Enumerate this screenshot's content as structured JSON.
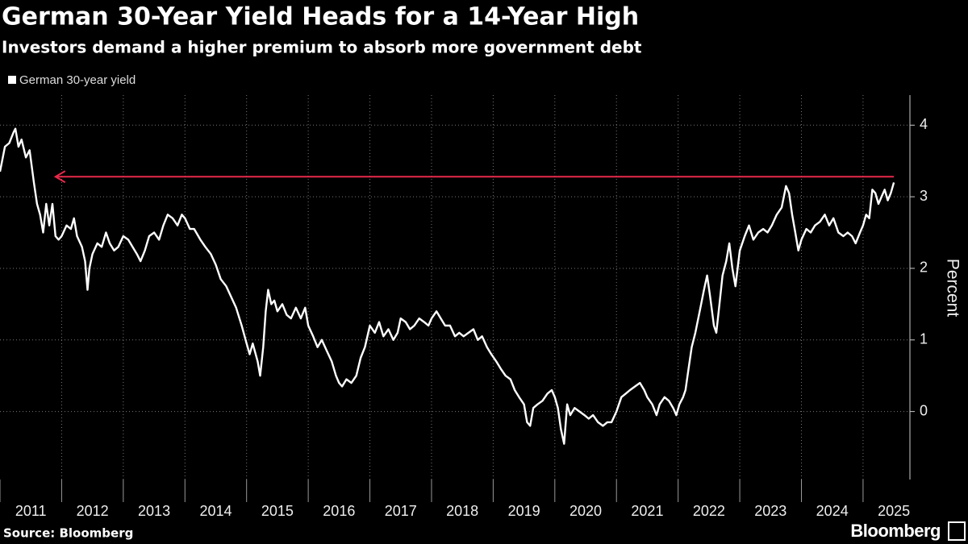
{
  "chart_data": {
    "type": "line",
    "title": "German 30-Year Yield Heads for a 14-Year High",
    "subtitle": "Investors demand a higher premium to absorb more government debt",
    "y_axis_label": "Percent",
    "source": "Source: Bloomberg",
    "logo": "Bloomberg",
    "grid": true,
    "xlim": [
      2011,
      2025.76
    ],
    "ylim": [
      -0.95,
      4.42
    ],
    "xticks": [
      2011,
      2012,
      2013,
      2014,
      2015,
      2016,
      2017,
      2018,
      2019,
      2020,
      2021,
      2022,
      2023,
      2024,
      2025
    ],
    "yticks": [
      0,
      1,
      2,
      3,
      4
    ],
    "arrow": {
      "value": 3.28,
      "from": 2025.5,
      "to": 2011.9,
      "color": "#e8294a"
    },
    "x": [
      2011.0,
      2011.08,
      2011.15,
      2011.22,
      2011.25,
      2011.3,
      2011.35,
      2011.42,
      2011.48,
      2011.55,
      2011.6,
      2011.65,
      2011.7,
      2011.75,
      2011.8,
      2011.85,
      2011.9,
      2011.95,
      2012.0,
      2012.08,
      2012.15,
      2012.2,
      2012.25,
      2012.33,
      2012.38,
      2012.42,
      2012.45,
      2012.5,
      2012.58,
      2012.65,
      2012.72,
      2012.78,
      2012.85,
      2012.92,
      2013.0,
      2013.08,
      2013.15,
      2013.22,
      2013.28,
      2013.35,
      2013.42,
      2013.5,
      2013.58,
      2013.65,
      2013.72,
      2013.8,
      2013.88,
      2013.95,
      2014.0,
      2014.08,
      2014.15,
      2014.25,
      2014.33,
      2014.42,
      2014.5,
      2014.58,
      2014.67,
      2014.75,
      2014.83,
      2014.92,
      2015.0,
      2015.05,
      2015.1,
      2015.18,
      2015.22,
      2015.27,
      2015.31,
      2015.35,
      2015.4,
      2015.45,
      2015.5,
      2015.58,
      2015.65,
      2015.72,
      2015.8,
      2015.88,
      2015.95,
      2016.0,
      2016.08,
      2016.15,
      2016.22,
      2016.3,
      2016.38,
      2016.45,
      2016.5,
      2016.55,
      2016.62,
      2016.7,
      2016.78,
      2016.85,
      2016.92,
      2017.0,
      2017.08,
      2017.15,
      2017.22,
      2017.3,
      2017.38,
      2017.45,
      2017.5,
      2017.58,
      2017.65,
      2017.72,
      2017.8,
      2017.88,
      2017.95,
      2018.0,
      2018.08,
      2018.15,
      2018.22,
      2018.3,
      2018.38,
      2018.45,
      2018.52,
      2018.6,
      2018.68,
      2018.75,
      2018.82,
      2018.9,
      2018.97,
      2019.05,
      2019.12,
      2019.2,
      2019.28,
      2019.35,
      2019.42,
      2019.5,
      2019.55,
      2019.6,
      2019.65,
      2019.72,
      2019.8,
      2019.88,
      2019.95,
      2020.0,
      2020.05,
      2020.1,
      2020.15,
      2020.2,
      2020.25,
      2020.32,
      2020.4,
      2020.48,
      2020.55,
      2020.62,
      2020.7,
      2020.78,
      2020.85,
      2020.92,
      2021.0,
      2021.08,
      2021.15,
      2021.22,
      2021.3,
      2021.38,
      2021.45,
      2021.5,
      2021.58,
      2021.65,
      2021.7,
      2021.78,
      2021.85,
      2021.92,
      2021.97,
      2022.02,
      2022.08,
      2022.12,
      2022.17,
      2022.22,
      2022.28,
      2022.35,
      2022.42,
      2022.47,
      2022.52,
      2022.58,
      2022.62,
      2022.67,
      2022.72,
      2022.78,
      2022.83,
      2022.88,
      2022.93,
      2023.0,
      2023.08,
      2023.15,
      2023.22,
      2023.3,
      2023.38,
      2023.45,
      2023.52,
      2023.6,
      2023.68,
      2023.75,
      2023.8,
      2023.85,
      2023.9,
      2023.95,
      2024.0,
      2024.08,
      2024.15,
      2024.22,
      2024.3,
      2024.38,
      2024.45,
      2024.52,
      2024.6,
      2024.68,
      2024.75,
      2024.82,
      2024.88,
      2024.95,
      2025.0,
      2025.05,
      2025.1,
      2025.15,
      2025.2,
      2025.25,
      2025.3,
      2025.35,
      2025.4,
      2025.45,
      2025.5
    ],
    "series": [
      {
        "name": "German 30-year yield",
        "color": "#ffffff",
        "values": [
          3.35,
          3.7,
          3.75,
          3.9,
          3.95,
          3.7,
          3.8,
          3.55,
          3.65,
          3.2,
          2.9,
          2.75,
          2.5,
          2.9,
          2.6,
          2.9,
          2.45,
          2.4,
          2.45,
          2.6,
          2.55,
          2.7,
          2.45,
          2.3,
          2.1,
          1.7,
          2.0,
          2.2,
          2.35,
          2.3,
          2.5,
          2.35,
          2.25,
          2.3,
          2.45,
          2.4,
          2.3,
          2.2,
          2.1,
          2.25,
          2.45,
          2.5,
          2.4,
          2.6,
          2.75,
          2.7,
          2.6,
          2.75,
          2.7,
          2.55,
          2.55,
          2.4,
          2.3,
          2.2,
          2.05,
          1.85,
          1.75,
          1.6,
          1.45,
          1.2,
          0.95,
          0.8,
          0.95,
          0.7,
          0.5,
          0.9,
          1.4,
          1.7,
          1.5,
          1.55,
          1.4,
          1.5,
          1.35,
          1.3,
          1.45,
          1.3,
          1.45,
          1.2,
          1.05,
          0.9,
          1.0,
          0.85,
          0.7,
          0.5,
          0.4,
          0.35,
          0.45,
          0.4,
          0.5,
          0.75,
          0.9,
          1.2,
          1.1,
          1.25,
          1.05,
          1.15,
          1.0,
          1.1,
          1.3,
          1.25,
          1.15,
          1.2,
          1.3,
          1.25,
          1.2,
          1.3,
          1.4,
          1.3,
          1.2,
          1.2,
          1.05,
          1.1,
          1.05,
          1.1,
          1.15,
          1.0,
          1.05,
          0.9,
          0.8,
          0.7,
          0.6,
          0.5,
          0.45,
          0.3,
          0.2,
          0.1,
          -0.15,
          -0.2,
          0.05,
          0.1,
          0.15,
          0.25,
          0.3,
          0.2,
          0.05,
          -0.25,
          -0.45,
          0.1,
          -0.05,
          0.05,
          0.0,
          -0.05,
          -0.1,
          -0.05,
          -0.15,
          -0.2,
          -0.15,
          -0.15,
          0.0,
          0.2,
          0.25,
          0.3,
          0.35,
          0.4,
          0.3,
          0.2,
          0.1,
          -0.05,
          0.1,
          0.2,
          0.15,
          0.05,
          -0.05,
          0.1,
          0.2,
          0.3,
          0.6,
          0.9,
          1.1,
          1.4,
          1.7,
          1.9,
          1.6,
          1.2,
          1.1,
          1.5,
          1.9,
          2.1,
          2.35,
          2.0,
          1.75,
          2.25,
          2.45,
          2.6,
          2.4,
          2.5,
          2.55,
          2.5,
          2.6,
          2.75,
          2.85,
          3.15,
          3.05,
          2.75,
          2.5,
          2.25,
          2.4,
          2.55,
          2.5,
          2.6,
          2.65,
          2.75,
          2.6,
          2.7,
          2.5,
          2.45,
          2.5,
          2.45,
          2.35,
          2.5,
          2.6,
          2.75,
          2.7,
          3.1,
          3.05,
          2.9,
          3.0,
          3.1,
          2.95,
          3.05,
          3.2
        ]
      }
    ]
  }
}
